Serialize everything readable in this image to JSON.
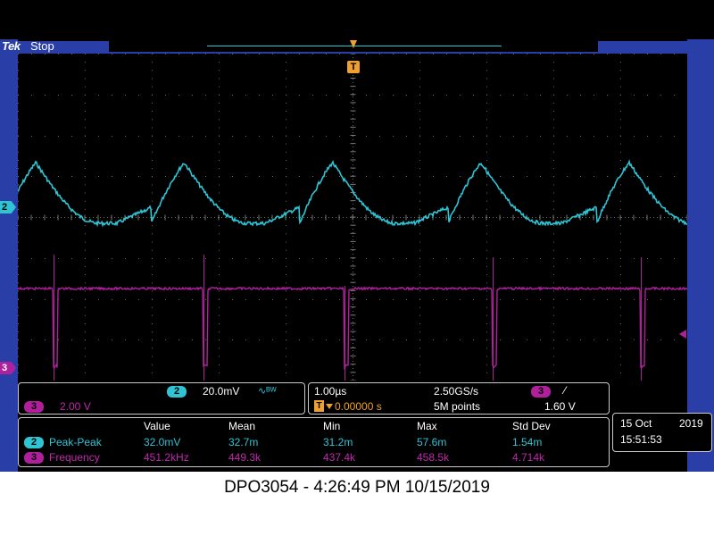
{
  "header": {
    "brand": "Tek",
    "acquisition_status": "Stop"
  },
  "markers": {
    "trigger": "T",
    "channel2": "2",
    "channel3": "3"
  },
  "channels": {
    "ch2": {
      "number": "2",
      "scale": "20.0mV",
      "bandwidth_symbol": "∿ᴮᵂ",
      "color": "#2ec4d4"
    },
    "ch3": {
      "number": "3",
      "scale": "2.00 V",
      "color": "#b0209c"
    }
  },
  "horizontal": {
    "time_per_div": "1.00µs",
    "sample_rate": "2.50GS/s",
    "trigger_marker": "T",
    "trigger_delay": "0.00000 s",
    "record_length": "5M points",
    "trigger_source": "3",
    "trigger_slope_symbol": "⁄",
    "trigger_level": "1.60 V"
  },
  "measurements": {
    "headers": [
      "Value",
      "Mean",
      "Min",
      "Max",
      "Std Dev"
    ],
    "rows": [
      {
        "channel": "2",
        "name": "Peak-Peak",
        "value": "32.0mV",
        "mean": "32.7m",
        "min": "31.2m",
        "max": "57.6m",
        "std_dev": "1.54m"
      },
      {
        "channel": "3",
        "name": "Frequency",
        "value": "451.2kHz",
        "mean": "449.3k",
        "min": "437.4k",
        "max": "458.5k",
        "std_dev": "4.714k"
      }
    ]
  },
  "datetime": {
    "day_month": "15 Oct",
    "year": "2019",
    "time": "15:51:53"
  },
  "caption": "DPO3054 - 4:26:49 PM    10/15/2019",
  "colors": {
    "frame": "#2a3ea8",
    "ch2_trace": "#2ec4d4",
    "ch3_trace": "#b0209c",
    "trigger": "#f0a030"
  }
}
